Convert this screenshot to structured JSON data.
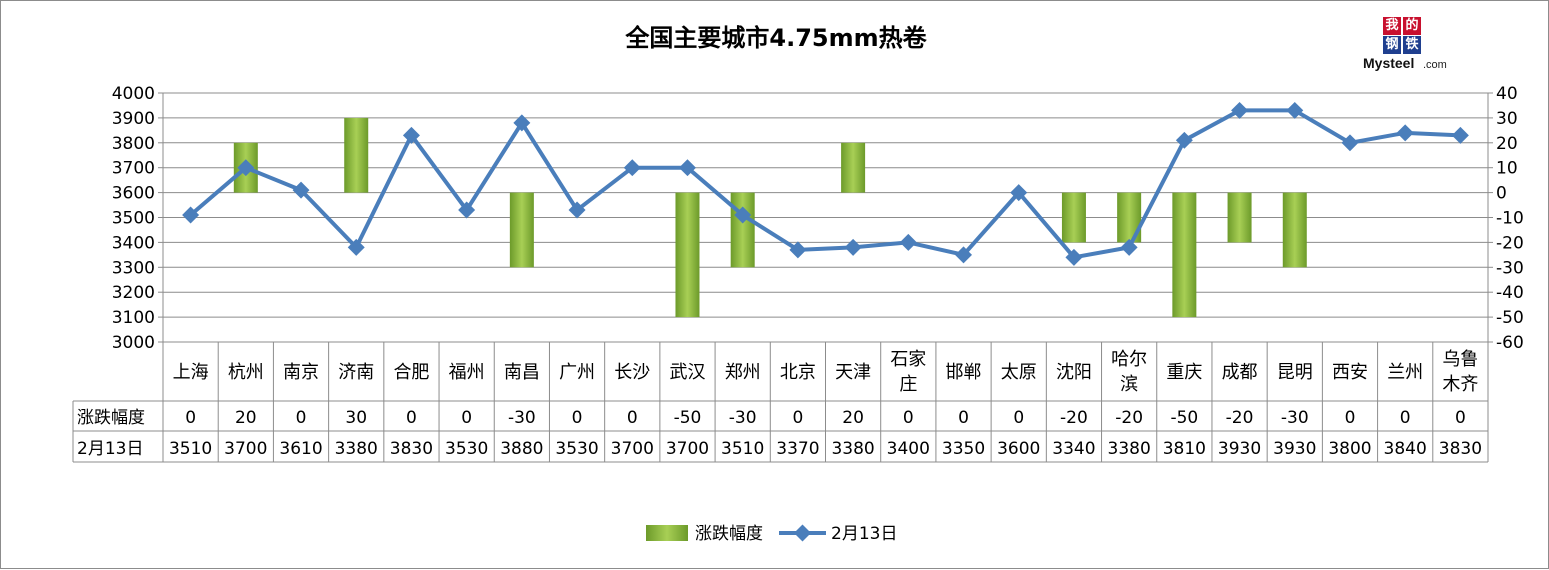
{
  "logo": {
    "chars": [
      "我",
      "的",
      "钢",
      "铁"
    ],
    "brand": "Mysteel",
    "suffix": ".com"
  },
  "chart_data": {
    "type": "bar+line",
    "title": "全国主要城市4.75mm热卷",
    "categories": [
      "上海",
      "杭州",
      "南京",
      "济南",
      "合肥",
      "福州",
      "南昌",
      "广州",
      "长沙",
      "武汉",
      "郑州",
      "北京",
      "天津",
      "石家庄",
      "邯郸",
      "太原",
      "沈阳",
      "哈尔滨",
      "重庆",
      "成都",
      "昆明",
      "西安",
      "兰州",
      "乌鲁木齐"
    ],
    "category_lines": [
      [
        "上海"
      ],
      [
        "杭州"
      ],
      [
        "南京"
      ],
      [
        "济南"
      ],
      [
        "合肥"
      ],
      [
        "福州"
      ],
      [
        "南昌"
      ],
      [
        "广州"
      ],
      [
        "长沙"
      ],
      [
        "武汉"
      ],
      [
        "郑州"
      ],
      [
        "北京"
      ],
      [
        "天津"
      ],
      [
        "石家",
        "庄"
      ],
      [
        "邯郸"
      ],
      [
        "太原"
      ],
      [
        "沈阳"
      ],
      [
        "哈尔",
        "滨"
      ],
      [
        "重庆"
      ],
      [
        "成都"
      ],
      [
        "昆明"
      ],
      [
        "西安"
      ],
      [
        "兰州"
      ],
      [
        "乌鲁",
        "木齐"
      ]
    ],
    "series": [
      {
        "name": "涨跌幅度",
        "type": "bar",
        "axis": "right",
        "color": "#8ab53a",
        "values": [
          0,
          20,
          0,
          30,
          0,
          0,
          -30,
          0,
          0,
          -50,
          -30,
          0,
          20,
          0,
          0,
          0,
          -20,
          -20,
          -50,
          -20,
          -30,
          0,
          0,
          0
        ]
      },
      {
        "name": "2月13日",
        "type": "line",
        "axis": "left",
        "color": "#4a7ebb",
        "values": [
          3510,
          3700,
          3610,
          3380,
          3830,
          3530,
          3880,
          3530,
          3700,
          3700,
          3510,
          3370,
          3380,
          3400,
          3350,
          3600,
          3340,
          3380,
          3810,
          3930,
          3930,
          3800,
          3840,
          3830
        ]
      }
    ],
    "y_left": {
      "min": 3000,
      "max": 4000,
      "step": 100
    },
    "y_right": {
      "min": -60,
      "max": 40,
      "step": 10
    },
    "grid": true,
    "legend": "bottom",
    "data_table": true
  }
}
